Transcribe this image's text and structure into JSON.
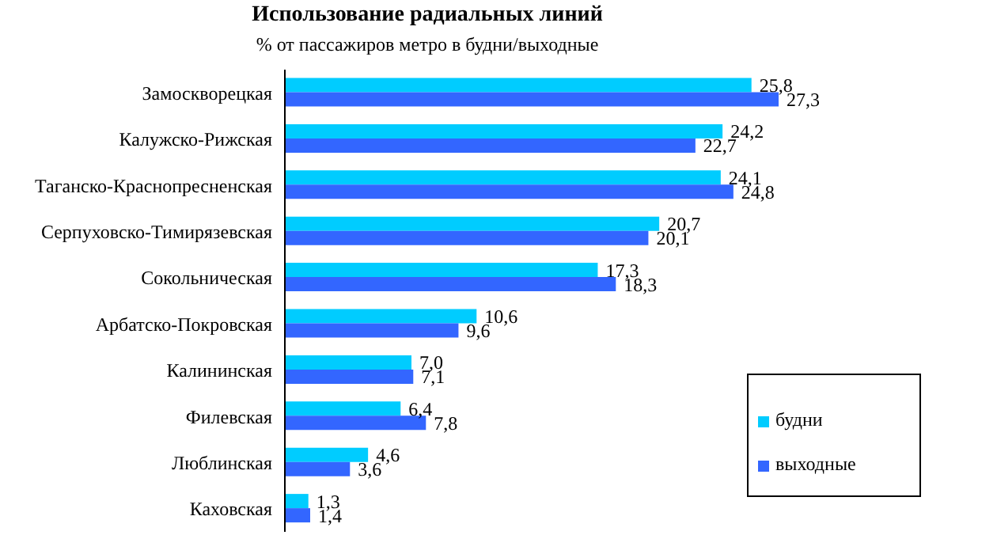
{
  "chart_data": {
    "type": "bar",
    "orientation": "horizontal",
    "title": "Использование радиальных линий",
    "subtitle": "% от пассажиров метро в будни/выходные",
    "categories": [
      "Замоскворецкая",
      "Калужско-Рижская",
      "Таганско-Краснопресненская",
      "Серпуховско-Тимирязевская",
      "Сокольническая",
      "Арбатско-Покровская",
      "Калининская",
      "Филевская",
      "Люблинская",
      "Каховская"
    ],
    "series": [
      {
        "name": "будни",
        "color": "#00ccff",
        "values": [
          25.8,
          24.2,
          24.1,
          20.7,
          17.3,
          10.6,
          7.0,
          6.4,
          4.6,
          1.3
        ],
        "value_labels": [
          "25,8",
          "24,2",
          "24,1",
          "20,7",
          "17,3",
          "10,6",
          "7,0",
          "6,4",
          "4,6",
          "1,3"
        ]
      },
      {
        "name": "выходные",
        "color": "#3366ff",
        "values": [
          27.3,
          22.7,
          24.8,
          20.1,
          18.3,
          9.6,
          7.1,
          7.8,
          3.6,
          1.4
        ],
        "value_labels": [
          "27,3",
          "22,7",
          "24,8",
          "20,1",
          "18,3",
          "9,6",
          "7,1",
          "7,8",
          "3,6",
          "1,4"
        ]
      }
    ],
    "legend": "bottom right"
  }
}
